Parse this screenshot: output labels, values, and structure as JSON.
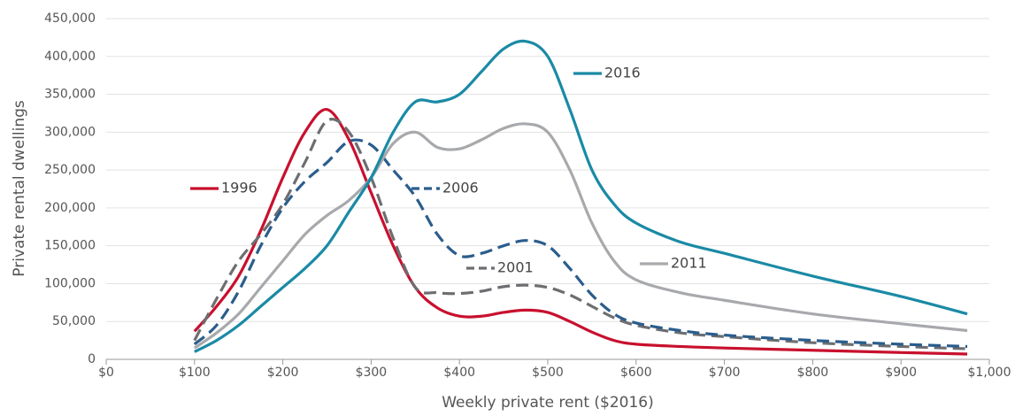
{
  "chart_data": {
    "type": "line",
    "x_label": "Weekly private rent ($2016)",
    "y_label": "Private rental dwellings",
    "x": [
      100,
      125,
      150,
      175,
      200,
      225,
      250,
      275,
      300,
      325,
      350,
      375,
      400,
      425,
      450,
      475,
      500,
      525,
      550,
      575,
      600,
      650,
      700,
      800,
      900,
      975
    ],
    "series": [
      {
        "name": "1996",
        "color": "#c8102e",
        "dashed": false,
        "values": [
          37,
          70,
          110,
          170,
          240,
          300,
          330,
          290,
          220,
          150,
          95,
          68,
          57,
          57,
          62,
          65,
          62,
          50,
          36,
          25,
          20,
          17,
          15,
          12,
          9,
          7
        ]
      },
      {
        "name": "2001",
        "color": "#6d6e71",
        "dashed": true,
        "values": [
          25,
          80,
          130,
          165,
          205,
          260,
          315,
          300,
          240,
          160,
          95,
          88,
          87,
          90,
          96,
          98,
          95,
          85,
          70,
          55,
          45,
          35,
          30,
          22,
          17,
          14
        ]
      },
      {
        "name": "2006",
        "color": "#2a5d8c",
        "dashed": true,
        "values": [
          20,
          45,
          90,
          150,
          200,
          235,
          260,
          288,
          283,
          250,
          215,
          165,
          137,
          140,
          150,
          157,
          150,
          120,
          85,
          60,
          48,
          38,
          32,
          25,
          20,
          17
        ]
      },
      {
        "name": "2011",
        "color": "#a7a9ac",
        "dashed": false,
        "values": [
          15,
          35,
          60,
          95,
          130,
          165,
          190,
          210,
          240,
          285,
          300,
          280,
          278,
          290,
          305,
          311,
          300,
          250,
          180,
          130,
          105,
          88,
          78,
          60,
          47,
          38
        ]
      },
      {
        "name": "2016",
        "color": "#1a8aa5",
        "dashed": false,
        "values": [
          10,
          25,
          45,
          70,
          95,
          120,
          150,
          195,
          240,
          300,
          340,
          340,
          350,
          380,
          410,
          420,
          400,
          330,
          250,
          205,
          180,
          155,
          140,
          110,
          83,
          60
        ]
      }
    ],
    "y_unit_scale": 1000,
    "xlim": [
      0,
      1000
    ],
    "xticks": [
      {
        "value": 0,
        "label": "$0"
      },
      {
        "value": 100,
        "label": "$100"
      },
      {
        "value": 200,
        "label": "$200"
      },
      {
        "value": 300,
        "label": "$300"
      },
      {
        "value": 400,
        "label": "$400"
      },
      {
        "value": 500,
        "label": "$500"
      },
      {
        "value": 600,
        "label": "$600"
      },
      {
        "value": 700,
        "label": "$700"
      },
      {
        "value": 800,
        "label": "$800"
      },
      {
        "value": 900,
        "label": "$900"
      },
      {
        "value": 1000,
        "label": "$1,000"
      }
    ],
    "ylim": [
      0,
      450
    ],
    "yticks": [
      0,
      {
        "value": 50,
        "label": "50,000"
      },
      {
        "value": 100,
        "label": "100,000"
      },
      {
        "value": 150,
        "label": "150,000"
      },
      {
        "value": 200,
        "label": "200,000"
      },
      {
        "value": 250,
        "label": "250,000"
      },
      {
        "value": 300,
        "label": "300,000"
      },
      {
        "value": 350,
        "label": "350,000"
      },
      {
        "value": 400,
        "label": "400,000"
      },
      {
        "value": 450,
        "label": "450,000"
      }
    ],
    "grid": true
  }
}
